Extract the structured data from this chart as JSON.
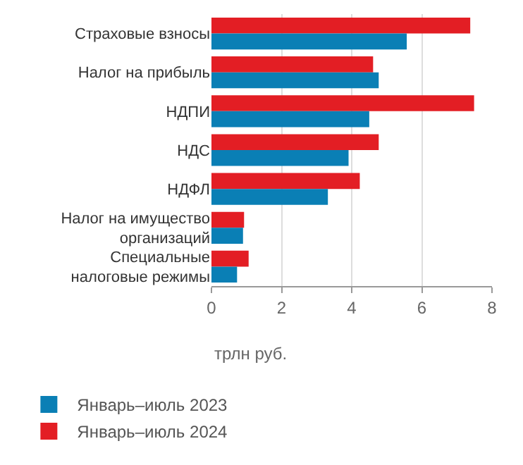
{
  "chart_data": {
    "type": "bar",
    "orientation": "horizontal",
    "xlabel": "трлн руб.",
    "categories": [
      "Страховые взносы",
      "Налог на прибыль",
      "НДПИ",
      "НДС",
      "НДФЛ",
      "Налог на имущество организаций",
      "Специальные налоговые режимы"
    ],
    "series": [
      {
        "name": "Январь–июль 2023",
        "color": "#0a7fb5",
        "values": [
          5.57,
          4.77,
          4.5,
          3.91,
          3.32,
          0.9,
          0.73
        ]
      },
      {
        "name": "Январь–июль 2024",
        "color": "#e31e24",
        "values": [
          7.38,
          4.61,
          7.49,
          4.77,
          4.23,
          0.93,
          1.06
        ]
      }
    ],
    "xlim": [
      0,
      8
    ],
    "xticks": [
      0,
      2,
      4,
      6,
      8
    ],
    "grid": "x",
    "legend": "bottom"
  }
}
